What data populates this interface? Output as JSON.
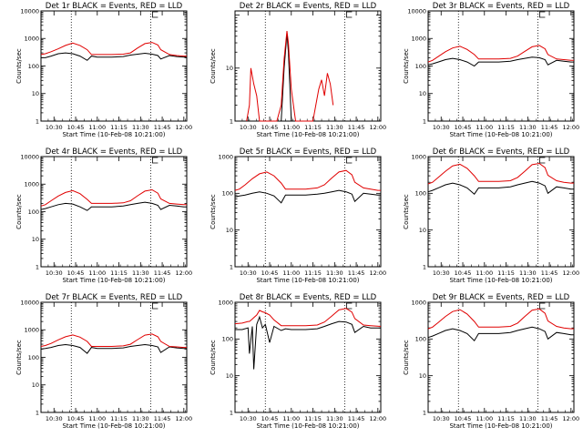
{
  "figure": {
    "xlabel": "Start Time (10-Feb-08 10:21:00)",
    "ylabel": "Counts/sec",
    "x_tick_labels": [
      "10:30",
      "10:45",
      "11:00",
      "11:15",
      "11:30",
      "11:45",
      "12:00"
    ],
    "y_tick_labels": [
      "1",
      "10",
      "100",
      "1000",
      "10000"
    ],
    "colors": {
      "events": "#000000",
      "lld": "#e00000",
      "background": "#ffffff"
    }
  },
  "chart_data": [
    {
      "type": "line",
      "title": "Det 1r BLACK = Events, RED = LLD",
      "ylim": [
        1,
        10000
      ],
      "y_scale": "log",
      "xlim": [
        "10:21",
        "12:02"
      ],
      "y_ticks": [
        1,
        10,
        100,
        1000,
        10000
      ],
      "markers": [
        "10:42",
        "11:37"
      ],
      "x": [
        "10:21",
        "10:24",
        "10:28",
        "10:33",
        "10:38",
        "10:43",
        "10:48",
        "10:53",
        "10:56",
        "11:00",
        "11:10",
        "11:18",
        "11:23",
        "11:28",
        "11:33",
        "11:38",
        "11:42",
        "11:44",
        "11:50",
        "11:55",
        "12:00",
        "12:02"
      ],
      "series": [
        {
          "name": "Events",
          "values": [
            200,
            200,
            230,
            280,
            300,
            280,
            230,
            160,
            230,
            210,
            210,
            220,
            250,
            270,
            290,
            270,
            240,
            180,
            240,
            220,
            210,
            220
          ]
        },
        {
          "name": "LLD",
          "values": [
            260,
            280,
            330,
            420,
            560,
            680,
            560,
            390,
            260,
            260,
            260,
            270,
            300,
            450,
            650,
            720,
            580,
            390,
            260,
            240,
            230,
            230
          ]
        }
      ]
    },
    {
      "type": "line",
      "title": "Det 2r BLACK = Events, RED = LLD",
      "ylim": [
        1,
        120
      ],
      "y_scale": "log",
      "xlim": [
        "10:21",
        "12:02"
      ],
      "y_ticks": [
        1,
        10
      ],
      "markers": [
        "10:42",
        "11:37"
      ],
      "x": [
        "10:29",
        "10:31",
        "10:32",
        "10:34",
        "10:36",
        "10:38",
        "10:50",
        "10:53",
        "10:55",
        "10:57",
        "10:58",
        "11:00",
        "11:03",
        "11:05",
        "11:15",
        "11:17",
        "11:19",
        "11:21",
        "11:23",
        "11:25",
        "11:27",
        "11:29"
      ],
      "series": [
        {
          "name": "Events",
          "values": [
            1,
            1,
            1,
            1,
            1,
            1,
            1,
            1,
            10,
            45,
            20,
            1,
            1,
            1,
            1,
            1,
            1,
            1,
            1,
            1,
            1,
            1
          ]
        },
        {
          "name": "LLD",
          "values": [
            1,
            2,
            10,
            5,
            3,
            1,
            1,
            2,
            15,
            50,
            30,
            4,
            1,
            1,
            1,
            2,
            4,
            6,
            3,
            8,
            5,
            2
          ]
        }
      ]
    },
    {
      "type": "line",
      "title": "Det 3r BLACK = Events, RED = LLD",
      "ylim": [
        1,
        10000
      ],
      "y_scale": "log",
      "xlim": [
        "10:21",
        "12:02"
      ],
      "y_ticks": [
        1,
        10,
        100,
        1000,
        10000
      ],
      "markers": [
        "10:42",
        "11:37"
      ],
      "x": [
        "10:21",
        "10:24",
        "10:28",
        "10:33",
        "10:38",
        "10:43",
        "10:48",
        "10:53",
        "10:56",
        "11:00",
        "11:10",
        "11:18",
        "11:23",
        "11:28",
        "11:33",
        "11:38",
        "11:42",
        "11:44",
        "11:50",
        "11:55",
        "12:00",
        "12:02"
      ],
      "series": [
        {
          "name": "Events",
          "values": [
            110,
            120,
            140,
            170,
            190,
            170,
            140,
            100,
            140,
            140,
            140,
            150,
            170,
            190,
            210,
            200,
            170,
            110,
            160,
            150,
            140,
            140
          ]
        },
        {
          "name": "LLD",
          "values": [
            140,
            160,
            220,
            330,
            450,
            520,
            400,
            260,
            180,
            180,
            180,
            190,
            230,
            340,
            500,
            560,
            420,
            260,
            180,
            170,
            160,
            160
          ]
        }
      ]
    },
    {
      "type": "line",
      "title": "Det 4r BLACK = Events, RED = LLD",
      "ylim": [
        1,
        10000
      ],
      "y_scale": "log",
      "xlim": [
        "10:21",
        "12:02"
      ],
      "y_ticks": [
        1,
        10,
        100,
        1000,
        10000
      ],
      "markers": [
        "10:42",
        "11:37"
      ],
      "x": [
        "10:21",
        "10:24",
        "10:28",
        "10:33",
        "10:38",
        "10:43",
        "10:48",
        "10:53",
        "10:56",
        "11:00",
        "11:10",
        "11:18",
        "11:23",
        "11:28",
        "11:33",
        "11:38",
        "11:42",
        "11:44",
        "11:50",
        "11:55",
        "12:00",
        "12:02"
      ],
      "series": [
        {
          "name": "Events",
          "values": [
            120,
            130,
            150,
            180,
            200,
            190,
            150,
            110,
            150,
            150,
            150,
            160,
            180,
            200,
            220,
            200,
            170,
            120,
            170,
            160,
            150,
            150
          ]
        },
        {
          "name": "LLD",
          "values": [
            160,
            180,
            250,
            370,
            500,
            580,
            450,
            280,
            200,
            200,
            200,
            210,
            250,
            380,
            560,
            620,
            470,
            290,
            200,
            190,
            180,
            180
          ]
        }
      ]
    },
    {
      "type": "line",
      "title": "Det 5r BLACK = Events, RED = LLD",
      "ylim": [
        1,
        1000
      ],
      "y_scale": "log",
      "xlim": [
        "10:21",
        "12:02"
      ],
      "y_ticks": [
        1,
        10,
        100,
        1000
      ],
      "markers": [
        "10:42",
        "11:37"
      ],
      "x": [
        "10:21",
        "10:24",
        "10:28",
        "10:33",
        "10:38",
        "10:43",
        "10:48",
        "10:53",
        "10:56",
        "11:00",
        "11:10",
        "11:18",
        "11:23",
        "11:28",
        "11:33",
        "11:38",
        "11:42",
        "11:44",
        "11:50",
        "11:55",
        "12:00",
        "12:02"
      ],
      "series": [
        {
          "name": "Events",
          "values": [
            80,
            85,
            90,
            100,
            110,
            100,
            85,
            55,
            90,
            90,
            90,
            95,
            100,
            110,
            120,
            110,
            95,
            60,
            100,
            95,
            90,
            90
          ]
        },
        {
          "name": "LLD",
          "values": [
            120,
            130,
            170,
            250,
            340,
            380,
            300,
            190,
            130,
            130,
            130,
            140,
            170,
            260,
            380,
            420,
            320,
            200,
            140,
            130,
            120,
            120
          ]
        }
      ]
    },
    {
      "type": "line",
      "title": "Det 6r BLACK = Events, RED = LLD",
      "ylim": [
        1,
        1000
      ],
      "y_scale": "log",
      "xlim": [
        "10:21",
        "12:02"
      ],
      "y_ticks": [
        1,
        10,
        100,
        1000
      ],
      "markers": [
        "10:42",
        "11:37"
      ],
      "x": [
        "10:21",
        "10:24",
        "10:28",
        "10:33",
        "10:38",
        "10:43",
        "10:48",
        "10:53",
        "10:56",
        "11:00",
        "11:10",
        "11:18",
        "11:23",
        "11:28",
        "11:33",
        "11:38",
        "11:42",
        "11:44",
        "11:50",
        "11:55",
        "12:00",
        "12:02"
      ],
      "series": [
        {
          "name": "Events",
          "values": [
            110,
            120,
            140,
            170,
            190,
            170,
            140,
            95,
            140,
            140,
            140,
            150,
            170,
            190,
            210,
            190,
            160,
            100,
            150,
            140,
            130,
            130
          ]
        },
        {
          "name": "LLD",
          "values": [
            180,
            200,
            270,
            400,
            560,
            620,
            480,
            300,
            210,
            210,
            210,
            220,
            270,
            400,
            600,
            650,
            500,
            310,
            220,
            200,
            190,
            190
          ]
        }
      ]
    },
    {
      "type": "line",
      "title": "Det 7r BLACK = Events, RED = LLD",
      "ylim": [
        1,
        10000
      ],
      "y_scale": "log",
      "xlim": [
        "10:21",
        "12:02"
      ],
      "y_ticks": [
        1,
        10,
        100,
        1000,
        10000
      ],
      "markers": [
        "10:42",
        "11:37"
      ],
      "x": [
        "10:21",
        "10:24",
        "10:28",
        "10:33",
        "10:38",
        "10:43",
        "10:48",
        "10:53",
        "10:56",
        "11:00",
        "11:10",
        "11:18",
        "11:23",
        "11:28",
        "11:33",
        "11:38",
        "11:42",
        "11:44",
        "11:50",
        "11:55",
        "12:00",
        "12:02"
      ],
      "series": [
        {
          "name": "Events",
          "values": [
            200,
            210,
            230,
            270,
            290,
            270,
            230,
            140,
            230,
            210,
            210,
            220,
            250,
            270,
            290,
            270,
            240,
            150,
            240,
            220,
            210,
            210
          ]
        },
        {
          "name": "LLD",
          "values": [
            250,
            270,
            320,
            430,
            560,
            650,
            540,
            380,
            250,
            250,
            250,
            260,
            300,
            440,
            640,
            700,
            560,
            380,
            250,
            240,
            230,
            230
          ]
        }
      ]
    },
    {
      "type": "line",
      "title": "Det 8r BLACK = Events, RED = LLD",
      "ylim": [
        1,
        1000
      ],
      "y_scale": "log",
      "xlim": [
        "10:21",
        "12:02"
      ],
      "y_ticks": [
        1,
        10,
        100,
        1000
      ],
      "markers": [
        "10:42",
        "11:37"
      ],
      "x": [
        "10:21",
        "10:26",
        "10:30",
        "10:31",
        "10:33",
        "10:34",
        "10:36",
        "10:38",
        "10:40",
        "10:42",
        "10:45",
        "10:48",
        "10:53",
        "10:56",
        "11:00",
        "11:10",
        "11:18",
        "11:23",
        "11:28",
        "11:33",
        "11:38",
        "11:42",
        "11:44",
        "11:50",
        "11:55",
        "12:02"
      ],
      "series": [
        {
          "name": "Events",
          "values": [
            180,
            180,
            200,
            40,
            220,
            15,
            250,
            400,
            200,
            250,
            80,
            220,
            170,
            190,
            180,
            180,
            190,
            220,
            260,
            300,
            290,
            250,
            150,
            220,
            200,
            200
          ]
        },
        {
          "name": "LLD",
          "values": [
            260,
            270,
            300,
            300,
            350,
            380,
            450,
            600,
            550,
            520,
            450,
            330,
            230,
            230,
            230,
            230,
            240,
            290,
            420,
            620,
            680,
            540,
            360,
            240,
            230,
            220
          ]
        }
      ]
    },
    {
      "type": "line",
      "title": "Det 9r BLACK = Events, RED = LLD",
      "ylim": [
        1,
        1000
      ],
      "y_scale": "log",
      "xlim": [
        "10:21",
        "12:02"
      ],
      "y_ticks": [
        1,
        10,
        100,
        1000
      ],
      "markers": [
        "10:42",
        "11:37"
      ],
      "x": [
        "10:21",
        "10:24",
        "10:28",
        "10:33",
        "10:38",
        "10:43",
        "10:48",
        "10:53",
        "10:56",
        "11:00",
        "11:10",
        "11:18",
        "11:23",
        "11:28",
        "11:33",
        "11:38",
        "11:42",
        "11:44",
        "11:50",
        "11:55",
        "12:00",
        "12:02"
      ],
      "series": [
        {
          "name": "Events",
          "values": [
            110,
            120,
            140,
            170,
            190,
            170,
            140,
            90,
            140,
            140,
            140,
            150,
            170,
            190,
            210,
            190,
            160,
            100,
            150,
            140,
            130,
            130
          ]
        },
        {
          "name": "LLD",
          "values": [
            190,
            210,
            280,
            410,
            560,
            630,
            480,
            300,
            210,
            210,
            210,
            220,
            270,
            410,
            610,
            660,
            500,
            310,
            220,
            200,
            190,
            190
          ]
        }
      ]
    }
  ]
}
